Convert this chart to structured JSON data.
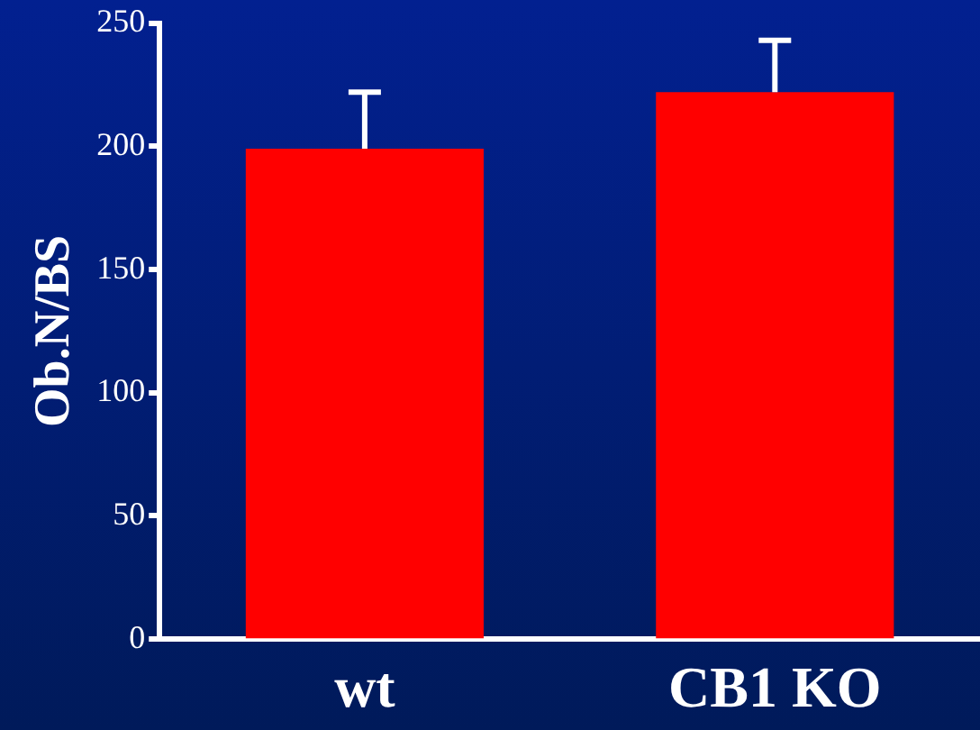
{
  "chart_data": {
    "type": "bar",
    "ylabel": "Ob.N/BS",
    "categories": [
      "wt",
      "CB1 KO"
    ],
    "values": [
      199,
      222
    ],
    "errors": [
      23,
      21
    ],
    "color": "#ff0000",
    "ylim": [
      0,
      250
    ],
    "yticks": [
      0,
      50,
      100,
      150,
      200,
      250
    ],
    "grid": false,
    "legend": false
  }
}
